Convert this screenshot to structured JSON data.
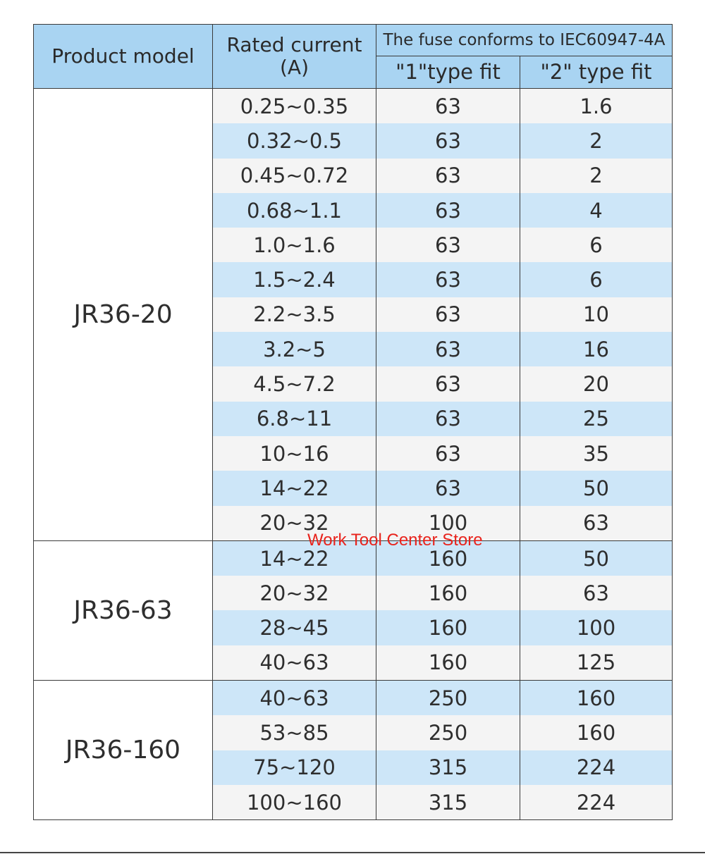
{
  "headers": {
    "product_model": "Product model",
    "rated_current_line1": "Rated current",
    "rated_current_line2": "(A)",
    "fuse_group": "The fuse conforms to IEC60947-4A",
    "type1": "\"1\"type fit",
    "type2": "\"2\" type fit"
  },
  "groups": [
    {
      "model": "JR36-20",
      "rows": [
        {
          "rated": "0.25~0.35",
          "t1": "63",
          "t2": "1.6"
        },
        {
          "rated": "0.32~0.5",
          "t1": "63",
          "t2": "2"
        },
        {
          "rated": "0.45~0.72",
          "t1": "63",
          "t2": "2"
        },
        {
          "rated": "0.68~1.1",
          "t1": "63",
          "t2": "4"
        },
        {
          "rated": "1.0~1.6",
          "t1": "63",
          "t2": "6"
        },
        {
          "rated": "1.5~2.4",
          "t1": "63",
          "t2": "6"
        },
        {
          "rated": "2.2~3.5",
          "t1": "63",
          "t2": "10"
        },
        {
          "rated": "3.2~5",
          "t1": "63",
          "t2": "16"
        },
        {
          "rated": "4.5~7.2",
          "t1": "63",
          "t2": "20"
        },
        {
          "rated": "6.8~11",
          "t1": "63",
          "t2": "25"
        },
        {
          "rated": "10~16",
          "t1": "63",
          "t2": "35"
        },
        {
          "rated": "14~22",
          "t1": "63",
          "t2": "50"
        },
        {
          "rated": "20~32",
          "t1": "100",
          "t2": "63"
        }
      ]
    },
    {
      "model": "JR36-63",
      "rows": [
        {
          "rated": "14~22",
          "t1": "160",
          "t2": "50"
        },
        {
          "rated": "20~32",
          "t1": "160",
          "t2": "63"
        },
        {
          "rated": "28~45",
          "t1": "160",
          "t2": "100"
        },
        {
          "rated": "40~63",
          "t1": "160",
          "t2": "125"
        }
      ]
    },
    {
      "model": "JR36-160",
      "rows": [
        {
          "rated": "40~63",
          "t1": "250",
          "t2": "160"
        },
        {
          "rated": "53~85",
          "t1": "250",
          "t2": "160"
        },
        {
          "rated": "75~120",
          "t1": "315",
          "t2": "224"
        },
        {
          "rated": "100~160",
          "t1": "315",
          "t2": "224"
        }
      ]
    }
  ],
  "watermark": "Work Tool Center Store",
  "colors": {
    "header_bg": "#a9d4f2",
    "stripe_blue": "#cde6f8",
    "stripe_grey": "#f4f4f4",
    "watermark": "#e8231c"
  }
}
